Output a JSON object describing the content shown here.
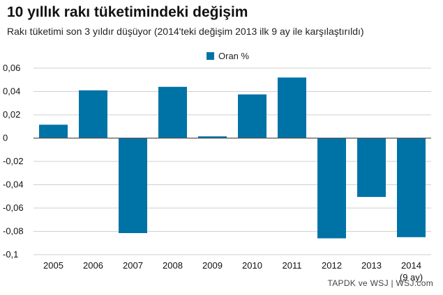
{
  "header": {
    "title": "10 yıllık rakı tüketimindeki değişim",
    "subtitle": "Rakı tüketimi son 3 yıldır düşüyor (2014'teki değişim 2013 ilk 9 ay ile karşılaştırıldı)"
  },
  "footer": {
    "source": "TAPDK ve WSJ  |  WSJ.com"
  },
  "colors": {
    "bar": "#0073a6",
    "grid": "#cfcfcf",
    "axis": "#555555"
  },
  "chart_data": {
    "type": "bar",
    "categories": [
      "2005",
      "2006",
      "2007",
      "2008",
      "2009",
      "2010",
      "2011",
      "2012",
      "2013",
      "2014"
    ],
    "category_sublabels": [
      "",
      "",
      "",
      "",
      "",
      "",
      "",
      "",
      "",
      "(9 ay)"
    ],
    "series": [
      {
        "name": "Oran %",
        "values": [
          0.0115,
          0.041,
          -0.0815,
          0.044,
          0.0015,
          0.0375,
          0.052,
          -0.086,
          -0.0505,
          -0.085
        ]
      }
    ],
    "ylim": [
      -0.1,
      0.06
    ],
    "yticks": [
      0.06,
      0.04,
      0.02,
      0,
      -0.02,
      -0.04,
      -0.06,
      -0.08,
      -0.1
    ],
    "ytick_labels": [
      "0,06",
      "0,04",
      "0,02",
      "0",
      "-0,02",
      "-0,04",
      "-0,06",
      "-0,08",
      "-0,1"
    ],
    "grid": true,
    "legend_position": "top-center"
  }
}
